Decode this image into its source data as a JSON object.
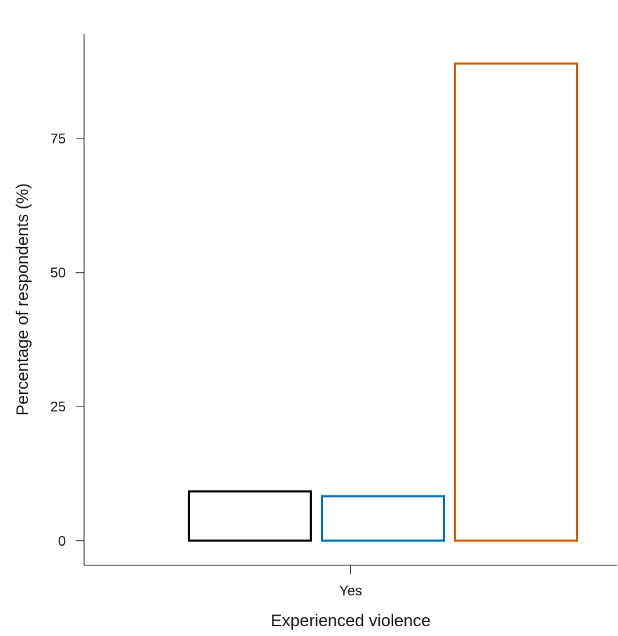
{
  "chart_data": {
    "type": "bar",
    "title": "",
    "xlabel": "Experienced violence",
    "ylabel": "Percentage of respondents (%)",
    "categories": [
      "Yes"
    ],
    "ylim": [
      -4.6,
      94.6
    ],
    "yticks": [
      0,
      25,
      50,
      75
    ],
    "grid": false,
    "legend": "none",
    "series": [
      {
        "color": "#000000",
        "values": [
          9.2
        ]
      },
      {
        "color": "#0072B2",
        "values": [
          8.3
        ]
      },
      {
        "color": "#D55E00",
        "values": [
          89.0
        ]
      }
    ]
  }
}
